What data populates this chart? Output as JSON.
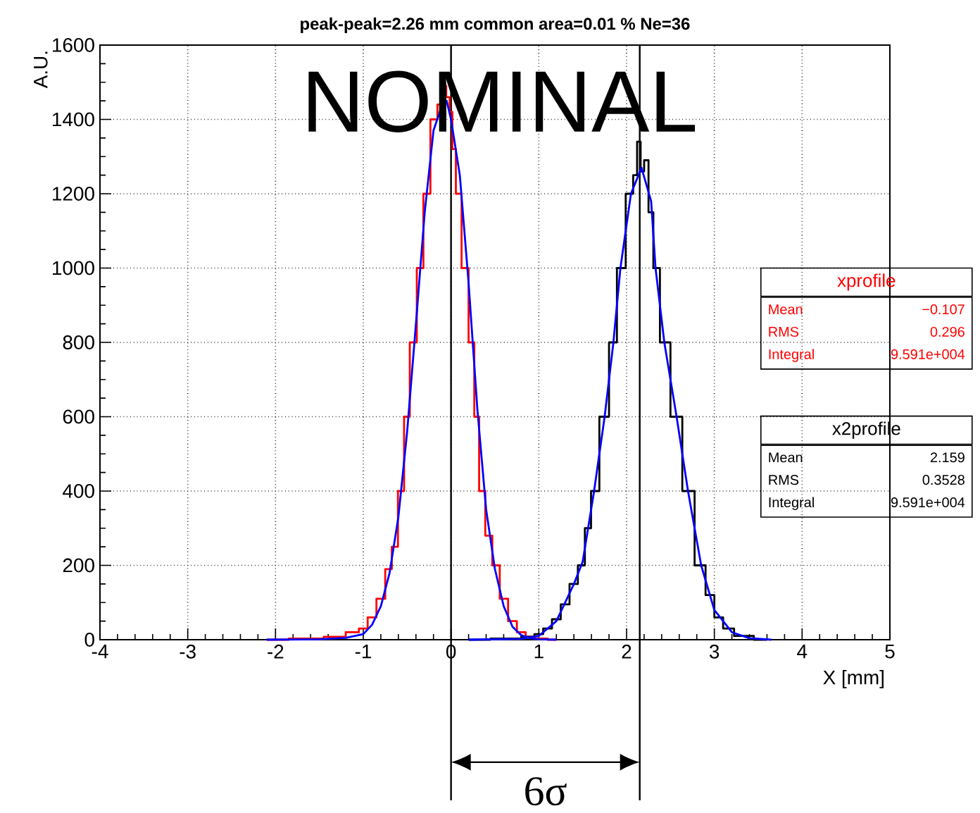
{
  "chart_data": {
    "type": "line",
    "title": "peak-peak=2.26 mm common area=0.01 % Ne=36",
    "xlabel": "X [mm]",
    "ylabel": "A.U.",
    "xlim": [
      -4,
      5
    ],
    "ylim": [
      0,
      1600
    ],
    "xticks": [
      -4,
      -3,
      -2,
      -1,
      0,
      1,
      2,
      3,
      4,
      5
    ],
    "yticks": [
      0,
      200,
      400,
      600,
      800,
      1000,
      1200,
      1400,
      1600
    ],
    "grid": true,
    "legend": "right",
    "marker": "none",
    "line_style": "solid",
    "series": [
      {
        "name": "xprofile",
        "type": "step",
        "color": "#ff0000",
        "x": [
          -2.1,
          -1.6,
          -1.3,
          -1.1,
          -1.0,
          -0.9,
          -0.8,
          -0.7,
          -0.65,
          -0.56,
          -0.51,
          -0.43,
          -0.35,
          -0.28,
          -0.19,
          -0.12,
          -0.08,
          -0.03,
          0.0,
          0.03,
          0.08,
          0.16,
          0.24,
          0.29,
          0.35,
          0.43,
          0.51,
          0.6,
          0.7,
          0.8,
          0.9,
          1.0,
          1.2
        ],
        "values": [
          0,
          3,
          8,
          20,
          30,
          60,
          110,
          190,
          250,
          400,
          600,
          800,
          1000,
          1200,
          1400,
          1440,
          1490,
          1460,
          1420,
          1320,
          1200,
          1000,
          800,
          600,
          400,
          280,
          200,
          110,
          50,
          20,
          8,
          3,
          0
        ]
      },
      {
        "name": "x2profile",
        "type": "step",
        "color": "#000000",
        "x": [
          0.2,
          0.7,
          0.9,
          1.0,
          1.1,
          1.2,
          1.3,
          1.4,
          1.49,
          1.56,
          1.63,
          1.75,
          1.85,
          1.93,
          2.05,
          2.1,
          2.14,
          2.18,
          2.22,
          2.28,
          2.33,
          2.43,
          2.57,
          2.7,
          2.85,
          2.95,
          3.05,
          3.15,
          3.3,
          3.6
        ],
        "values": [
          0,
          3,
          8,
          15,
          30,
          55,
          95,
          150,
          200,
          300,
          400,
          600,
          800,
          1000,
          1200,
          1250,
          1340,
          1260,
          1290,
          1150,
          1000,
          800,
          600,
          400,
          200,
          120,
          60,
          30,
          10,
          0
        ]
      },
      {
        "color": "#0000ff",
        "x": [
          -2.1,
          -1.5,
          -1.2,
          -1.0,
          -0.9,
          -0.8,
          -0.7,
          -0.6,
          -0.5,
          -0.4,
          -0.3,
          -0.2,
          -0.1,
          -0.05,
          0.0,
          0.1,
          0.2,
          0.3,
          0.4,
          0.5,
          0.6,
          0.7,
          0.8,
          0.9,
          1.0,
          1.2
        ],
        "values": [
          0,
          1,
          5,
          15,
          40,
          90,
          180,
          330,
          560,
          850,
          1150,
          1370,
          1440,
          1450,
          1400,
          1250,
          960,
          620,
          350,
          190,
          90,
          35,
          12,
          4,
          1,
          0
        ]
      },
      {
        "color": "#0000ff",
        "x": [
          0.2,
          0.8,
          1.0,
          1.2,
          1.4,
          1.5,
          1.63,
          1.75,
          1.85,
          1.93,
          2.05,
          2.17,
          2.28,
          2.33,
          2.43,
          2.57,
          2.7,
          2.85,
          3.0,
          3.2,
          3.4,
          3.65
        ],
        "values": [
          0,
          2,
          10,
          50,
          150,
          210,
          400,
          600,
          800,
          1000,
          1200,
          1270,
          1180,
          1000,
          800,
          600,
          400,
          200,
          80,
          20,
          4,
          0
        ]
      }
    ],
    "ref_lines": [
      {
        "axis": "x",
        "value": 0,
        "color": "#000000"
      },
      {
        "axis": "x",
        "value": 2.15,
        "color": "#000000"
      }
    ],
    "annotations": [
      "NOMINAL",
      "6σ",
      "Mean",
      "−0.107",
      "RMS",
      "0.296",
      "Integral",
      "9.591e+004",
      "Mean",
      "2.159",
      "RMS",
      "0.3528",
      "Integral",
      "9.591e+004"
    ]
  }
}
